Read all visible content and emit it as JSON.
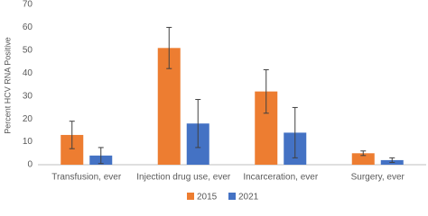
{
  "chart_data": {
    "type": "bar",
    "y_label": "Percent HCV RNA Positive",
    "categories": [
      "Transfusion, ever",
      "Injection drug use, ever",
      "Incarceration, ever",
      "Surgery, ever"
    ],
    "series": [
      {
        "name": "2015",
        "color": "#ed7d31",
        "values": [
          13,
          51,
          32,
          5
        ],
        "errors": [
          6,
          9,
          9.5,
          1
        ]
      },
      {
        "name": "2021",
        "color": "#4472c4",
        "values": [
          4,
          18,
          14,
          2
        ],
        "errors": [
          3.5,
          10.5,
          11,
          1
        ]
      }
    ],
    "ylim": [
      0,
      70
    ],
    "yticks": [
      0,
      10,
      20,
      30,
      40,
      50,
      60,
      70
    ],
    "grid": false
  }
}
